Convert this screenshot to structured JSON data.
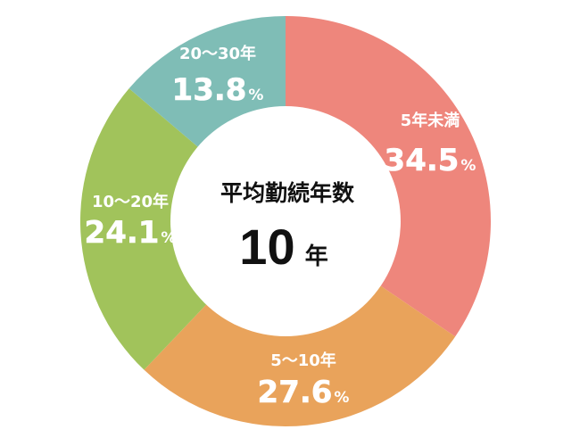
{
  "chart_data": {
    "type": "pie",
    "categories": [
      "5年未満",
      "5～10年",
      "10～20年",
      "20～30年"
    ],
    "values": [
      34.5,
      27.6,
      24.1,
      13.8
    ],
    "value_unit": "%",
    "colors": [
      "#ee867c",
      "#e9a35b",
      "#a1c35b",
      "#7fbdb6"
    ],
    "start_angle_deg": 0,
    "direction": "clockwise",
    "donut": true,
    "center": {
      "title": "平均勤続年数",
      "value": "10",
      "unit": "年"
    }
  }
}
